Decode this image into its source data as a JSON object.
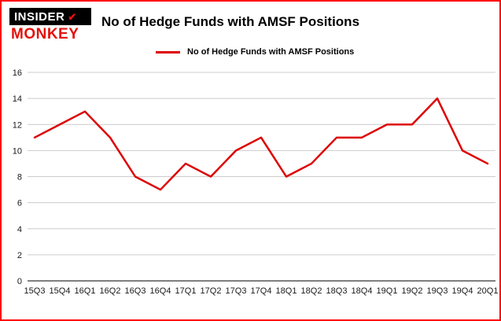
{
  "logo": {
    "top": "INSIDER",
    "bottom": "MONKEY",
    "accent_color": "#e3120b"
  },
  "header": {
    "title": "No of Hedge Funds with AMSF Positions"
  },
  "legend": {
    "label": "No of Hedge Funds with AMSF Positions",
    "color": "#dd0000"
  },
  "chart_data": {
    "type": "line",
    "title": "No of Hedge Funds with AMSF Positions",
    "categories": [
      "15Q3",
      "15Q4",
      "16Q1",
      "16Q2",
      "16Q3",
      "16Q4",
      "17Q1",
      "17Q2",
      "17Q3",
      "17Q4",
      "18Q1",
      "18Q2",
      "18Q3",
      "18Q4",
      "19Q1",
      "19Q2",
      "19Q3",
      "19Q4",
      "20Q1"
    ],
    "values": [
      11,
      12,
      13,
      11,
      8,
      7,
      9,
      8,
      10,
      11,
      8,
      9,
      11,
      11,
      12,
      12,
      14,
      10,
      9
    ],
    "xlabel": "",
    "ylabel": "",
    "ylim": [
      0,
      16
    ],
    "yticks": [
      0,
      2,
      4,
      6,
      8,
      10,
      12,
      14,
      16
    ],
    "grid": true,
    "legend_position": "top",
    "line_color": "#dd0000",
    "gridline_color": "#cccccc",
    "axis_color": "#555555"
  }
}
